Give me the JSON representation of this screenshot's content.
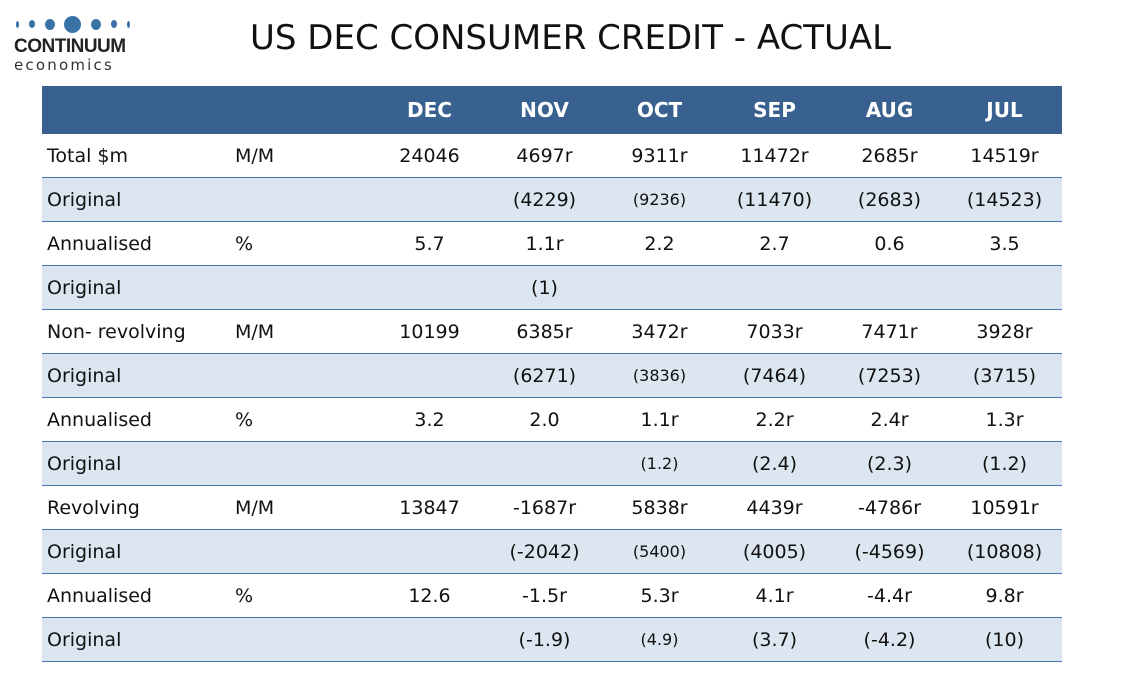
{
  "logo": {
    "brand": "CONTINUUM",
    "sub": "economics",
    "color": "#3a72a8"
  },
  "title": "US DEC CONSUMER CREDIT - ACTUAL",
  "columns": [
    "",
    "",
    "DEC",
    "NOV",
    "OCT",
    "SEP",
    "AUG",
    "JUL"
  ],
  "rows": [
    {
      "label": "Total $m",
      "unit": "M/M",
      "values": [
        "24046",
        "4697r",
        "9311r",
        "11472r",
        "2685r",
        "14519r"
      ]
    },
    {
      "label": "Original",
      "unit": "",
      "values": [
        "",
        "(4229)",
        "(9236)",
        "(11470)",
        "(2683)",
        "(14523)"
      ]
    },
    {
      "label": "Annualised",
      "unit": "%",
      "values": [
        "5.7",
        "1.1r",
        "2.2",
        "2.7",
        "0.6",
        "3.5"
      ]
    },
    {
      "label": "Original",
      "unit": "",
      "values": [
        "",
        "(1)",
        "",
        "",
        "",
        ""
      ]
    },
    {
      "label": "Non- revolving",
      "unit": "M/M",
      "values": [
        "10199",
        "6385r",
        "3472r",
        "7033r",
        "7471r",
        "3928r"
      ]
    },
    {
      "label": "Original",
      "unit": "",
      "values": [
        "",
        "(6271)",
        "(3836)",
        "(7464)",
        "(7253)",
        "(3715)"
      ]
    },
    {
      "label": "Annualised",
      "unit": "%",
      "values": [
        "3.2",
        "2.0",
        "1.1r",
        "2.2r",
        "2.4r",
        "1.3r"
      ]
    },
    {
      "label": "Original",
      "unit": "",
      "values": [
        "",
        "",
        "(1.2)",
        "(2.4)",
        "(2.3)",
        "(1.2)"
      ]
    },
    {
      "label": "Revolving",
      "unit": "M/M",
      "values": [
        "13847",
        "-1687r",
        "5838r",
        "4439r",
        "-4786r",
        "10591r"
      ]
    },
    {
      "label": "Original",
      "unit": "",
      "values": [
        "",
        "(-2042)",
        "(5400)",
        "(4005)",
        "(-4569)",
        "(10808)"
      ]
    },
    {
      "label": "Annualised",
      "unit": "%",
      "values": [
        "12.6",
        "-1.5r",
        "5.3r",
        "4.1r",
        "-4.4r",
        "9.8r"
      ]
    },
    {
      "label": "Original",
      "unit": "",
      "values": [
        "",
        "(-1.9)",
        "(4.9)",
        "(3.7)",
        "(-4.2)",
        "(10)"
      ]
    }
  ]
}
